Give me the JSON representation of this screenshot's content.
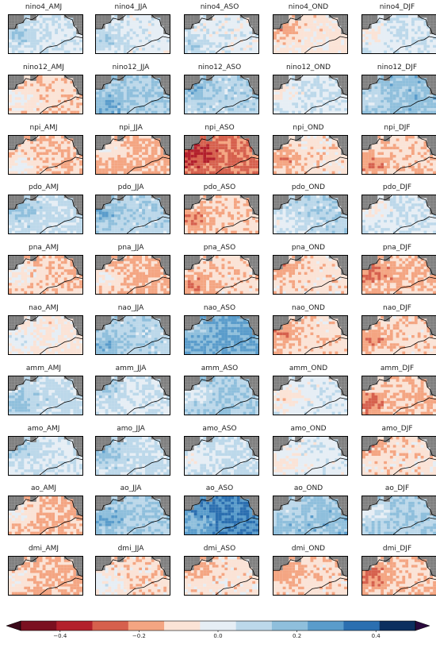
{
  "chart_data": {
    "type": "heatmap",
    "indices": [
      "nino4",
      "nino12",
      "npi",
      "pdo",
      "pna",
      "nao",
      "amm",
      "amo",
      "ao",
      "dmi"
    ],
    "seasons": [
      "AMJ",
      "JJA",
      "ASO",
      "OND",
      "DJF"
    ],
    "panel_titles": [
      [
        "nino4_AMJ",
        "nino4_JJA",
        "nino4_ASO",
        "nino4_OND",
        "nino4_DJF"
      ],
      [
        "nino12_AMJ",
        "nino12_JJA",
        "nino12_ASO",
        "nino12_OND",
        "nino12_DJF"
      ],
      [
        "npi_AMJ",
        "npi_JJA",
        "npi_ASO",
        "npi_OND",
        "npi_DJF"
      ],
      [
        "pdo_AMJ",
        "pdo_JJA",
        "pdo_ASO",
        "pdo_OND",
        "pdo_DJF"
      ],
      [
        "pna_AMJ",
        "pna_JJA",
        "pna_ASO",
        "pna_OND",
        "pna_DJF"
      ],
      [
        "nao_AMJ",
        "nao_JJA",
        "nao_ASO",
        "nao_OND",
        "nao_DJF"
      ],
      [
        "amm_AMJ",
        "amm_JJA",
        "amm_ASO",
        "amm_OND",
        "amm_DJF"
      ],
      [
        "amo_AMJ",
        "amo_JJA",
        "amo_ASO",
        "amo_OND",
        "amo_DJF"
      ],
      [
        "ao_AMJ",
        "ao_JJA",
        "ao_ASO",
        "ao_OND",
        "ao_DJF"
      ],
      [
        "dmi_AMJ",
        "dmi_JJA",
        "dmi_ASO",
        "dmi_OND",
        "dmi_DJF"
      ]
    ],
    "colorbar": {
      "vmin": -0.5,
      "vmax": 0.5,
      "levels": [
        -0.5,
        -0.4,
        -0.3,
        -0.2,
        -0.1,
        0.0,
        0.1,
        0.2,
        0.3,
        0.4,
        0.5
      ],
      "colors": [
        "#67001f",
        "#b2182b",
        "#d6604d",
        "#f4a582",
        "#fddbc7",
        "#e8eef4",
        "#d1e5f0",
        "#92c5de",
        "#4393c3",
        "#2166ac",
        "#053061"
      ],
      "bin_colors": [
        "#7b1020",
        "#b3202c",
        "#d6604d",
        "#f4a582",
        "#fbe3d6",
        "#e6eef5",
        "#bcd8ea",
        "#8fbfdc",
        "#5a9ccb",
        "#2b6fb0",
        "#0c2f5f"
      ],
      "extend_low_color": "#3b0a1a",
      "extend_high_color": "#2a0a3d",
      "ticks": [
        -0.4,
        -0.2,
        0.0,
        0.2,
        0.4
      ],
      "tick_labels": [
        "−0.4",
        "−0.2",
        "0.0",
        "0.2",
        "0.4"
      ]
    },
    "panel_mean": [
      [
        0.05,
        0.04,
        0.03,
        -0.02,
        0.06
      ],
      [
        -0.05,
        0.12,
        0.1,
        0.06,
        0.15
      ],
      [
        -0.06,
        -0.08,
        -0.14,
        -0.03,
        -0.05
      ],
      [
        0.08,
        0.1,
        -0.05,
        0.1,
        0.06
      ],
      [
        -0.06,
        -0.08,
        -0.04,
        -0.03,
        -0.07
      ],
      [
        -0.02,
        0.1,
        0.2,
        -0.04,
        -0.04
      ],
      [
        0.08,
        0.06,
        0.12,
        0.04,
        -0.06
      ],
      [
        0.06,
        0.08,
        0.08,
        0.04,
        -0.03
      ],
      [
        -0.08,
        0.12,
        0.25,
        0.15,
        0.12
      ],
      [
        -0.08,
        -0.04,
        -0.03,
        -0.04,
        -0.06
      ]
    ],
    "land_color": "#808080",
    "coast_color": "#000000"
  }
}
